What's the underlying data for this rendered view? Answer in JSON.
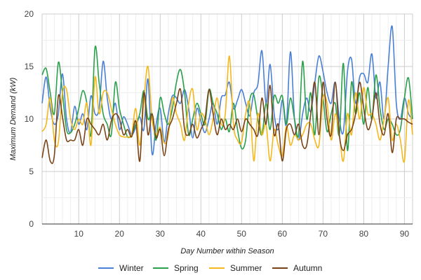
{
  "chart_data": {
    "type": "line",
    "title": "",
    "xlabel": "Day Number within Season",
    "ylabel": "Maximum Demand (kW)",
    "xlim": [
      1,
      92
    ],
    "ylim": [
      0,
      20
    ],
    "x_ticks": [
      10,
      20,
      30,
      40,
      50,
      60,
      70,
      80,
      90
    ],
    "y_ticks": [
      0,
      5,
      10,
      15,
      20
    ],
    "grid": true,
    "legend": "bottom",
    "series": [
      {
        "name": "Winter",
        "color": "#4a7fd6",
        "values": [
          11.5,
          14.0,
          11.0,
          9.5,
          10.5,
          14.3,
          10.0,
          8.7,
          11.2,
          9.5,
          10.5,
          9.0,
          12.2,
          10.5,
          11.0,
          15.5,
          12.0,
          10.0,
          11.5,
          9.0,
          10.2,
          9.5,
          8.5,
          9.2,
          10.2,
          9.0,
          13.8,
          6.7,
          9.5,
          11.0,
          7.8,
          10.5,
          12.2,
          12.0,
          11.5,
          12.8,
          11.0,
          8.2,
          11.0,
          9.8,
          8.7,
          10.0,
          11.5,
          9.5,
          12.0,
          12.3,
          13.5,
          11.0,
          11.8,
          12.8,
          11.5,
          10.3,
          12.5,
          13.3,
          16.5,
          11.5,
          15.2,
          10.5,
          9.0,
          11.8,
          9.5,
          16.4,
          10.0,
          8.0,
          10.5,
          12.0,
          10.7,
          13.5,
          16.0,
          14.5,
          12.5,
          11.5,
          13.5,
          10.0,
          8.8,
          14.5,
          15.7,
          11.5,
          14.0,
          14.3,
          13.5,
          16.2,
          12.0,
          13.5,
          10.0,
          15.0,
          18.8,
          11.5,
          10.0,
          12.0,
          10.5,
          10.0
        ]
      },
      {
        "name": "Spring",
        "color": "#2aa04a",
        "values": [
          14.2,
          14.8,
          12.5,
          10.5,
          15.4,
          12.5,
          9.0,
          8.7,
          9.5,
          11.0,
          12.7,
          11.5,
          8.5,
          16.8,
          13.5,
          10.5,
          9.5,
          8.5,
          13.5,
          11.0,
          9.5,
          8.3,
          8.5,
          9.5,
          10.5,
          12.7,
          10.0,
          10.5,
          8.0,
          12.0,
          10.5,
          9.5,
          11.0,
          13.5,
          14.7,
          12.5,
          8.5,
          10.0,
          11.5,
          10.5,
          9.5,
          12.8,
          11.5,
          10.5,
          9.0,
          10.0,
          8.8,
          11.5,
          9.0,
          7.2,
          8.0,
          11.8,
          12.3,
          10.0,
          8.5,
          11.5,
          9.0,
          12.2,
          11.5,
          12.2,
          9.5,
          12.0,
          10.0,
          8.5,
          15.5,
          10.0,
          12.5,
          8.5,
          14.0,
          12.0,
          8.8,
          10.5,
          11.5,
          8.5,
          15.3,
          7.0,
          13.5,
          10.5,
          12.5,
          9.5,
          13.0,
          10.0,
          14.2,
          11.0,
          9.0,
          10.0,
          9.5,
          8.5,
          9.0,
          12.0,
          13.9,
          10.0
        ]
      },
      {
        "name": "Summer",
        "color": "#f4b81c",
        "values": [
          8.8,
          9.5,
          12.0,
          8.0,
          7.8,
          12.5,
          12.8,
          10.0,
          9.0,
          10.0,
          9.5,
          11.5,
          7.5,
          14.0,
          10.5,
          12.5,
          12.5,
          11.0,
          9.5,
          8.5,
          8.3,
          8.3,
          8.5,
          11.0,
          7.5,
          11.8,
          15.0,
          10.0,
          8.5,
          9.2,
          7.7,
          8.5,
          12.0,
          10.5,
          9.5,
          8.0,
          11.5,
          12.8,
          9.0,
          10.5,
          10.0,
          8.5,
          10.0,
          12.0,
          9.5,
          10.5,
          16.0,
          9.5,
          8.0,
          7.8,
          10.5,
          11.5,
          6.0,
          10.5,
          8.5,
          9.5,
          6.0,
          9.0,
          7.5,
          6.5,
          9.3,
          7.5,
          8.5,
          8.0,
          8.5,
          9.5,
          9.5,
          8.0,
          7.5,
          12.0,
          11.5,
          8.0,
          10.5,
          8.5,
          6.0,
          10.5,
          8.5,
          12.5,
          10.0,
          13.0,
          10.5,
          10.5,
          9.5,
          8.0,
          10.0,
          12.0,
          8.0,
          9.5,
          8.0,
          6.0,
          11.8,
          8.5
        ]
      },
      {
        "name": "Autumn",
        "color": "#7a4316",
        "values": [
          6.3,
          8.0,
          6.0,
          6.5,
          12.2,
          10.2,
          8.0,
          8.0,
          8.0,
          9.0,
          7.5,
          10.0,
          9.5,
          9.0,
          8.5,
          9.5,
          8.0,
          9.8,
          10.5,
          10.0,
          8.5,
          9.0,
          8.3,
          9.8,
          6.0,
          12.5,
          8.5,
          10.5,
          8.2,
          9.0,
          6.5,
          9.0,
          10.0,
          11.5,
          12.8,
          9.0,
          8.5,
          9.5,
          8.2,
          9.0,
          10.0,
          12.8,
          10.5,
          8.5,
          10.0,
          9.0,
          9.5,
          9.0,
          10.0,
          8.8,
          10.0,
          9.5,
          9.0,
          8.5,
          12.0,
          9.5,
          13.2,
          8.5,
          9.5,
          6.0,
          9.0,
          9.5,
          8.5,
          9.5,
          7.5,
          7.5,
          10.5,
          13.5,
          8.5,
          13.5,
          10.0,
          8.5,
          13.5,
          8.5,
          7.0,
          8.5,
          9.0,
          10.5,
          13.5,
          11.0,
          9.0,
          10.0,
          12.5,
          9.5,
          8.5,
          10.5,
          6.8,
          10.0,
          10.0,
          10.0,
          9.7,
          9.5
        ]
      }
    ]
  }
}
